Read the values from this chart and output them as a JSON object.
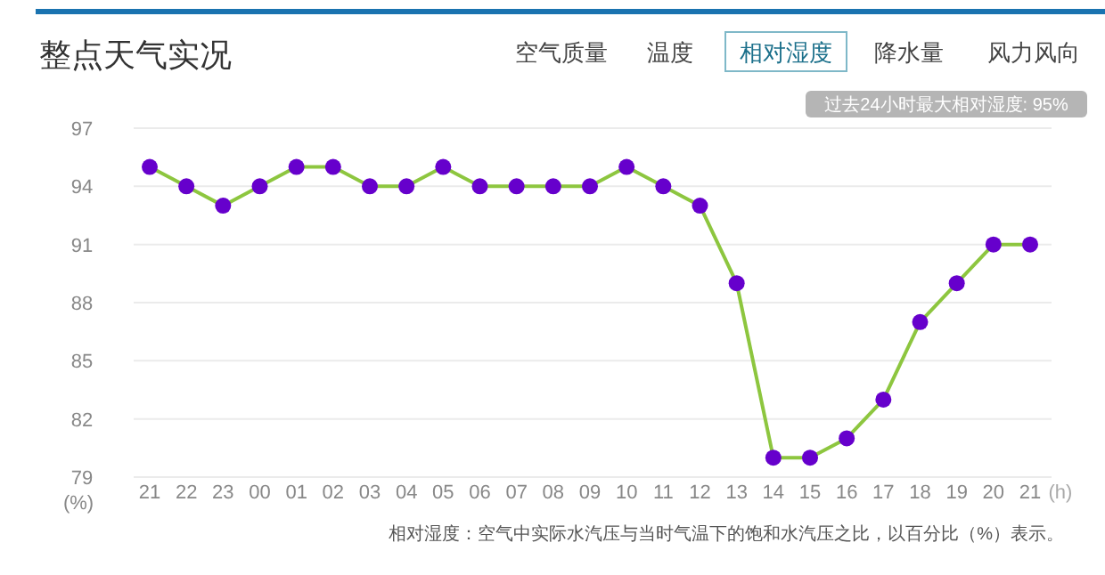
{
  "chart_data": {
    "type": "line",
    "title": "整点天气实况",
    "xlabel": "(h)",
    "ylabel": "(%)",
    "categories": [
      "21",
      "22",
      "23",
      "00",
      "01",
      "02",
      "03",
      "04",
      "05",
      "06",
      "07",
      "08",
      "09",
      "10",
      "11",
      "12",
      "13",
      "14",
      "15",
      "16",
      "17",
      "18",
      "19",
      "20",
      "21"
    ],
    "series": [
      {
        "color": "#8dc63f",
        "values": [
          95,
          94,
          93,
          94,
          95,
          95,
          94,
          94,
          95,
          94,
          94,
          94,
          94,
          95,
          94,
          93,
          89,
          80,
          80,
          81,
          83,
          87,
          89,
          91,
          91
        ]
      }
    ],
    "marker": "circle",
    "line_style": "solid",
    "grid": "y",
    "ylim": [
      79,
      97
    ],
    "yticks": [
      79,
      82,
      85,
      88,
      91,
      94,
      97
    ],
    "annotations": [
      "空气质量",
      "温度",
      "相对湿度",
      "降水量",
      "风力风向",
      "过去24小时最大相对湿度: 95%",
      "相对湿度：空气中实际水汽压与当时气温下的饱和水汽压之比，以百分比（%）表示。"
    ]
  }
}
